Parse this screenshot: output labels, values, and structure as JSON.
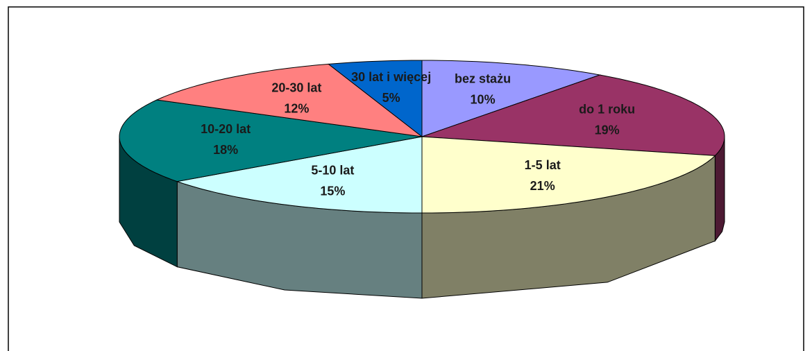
{
  "chart_data": {
    "type": "pie",
    "categories": [
      "bez stażu",
      "do 1 roku",
      "1-5 lat",
      "5-10 lat",
      "10-20 lat",
      "20-30 lat",
      "30 lat i więcej"
    ],
    "values": [
      10,
      19,
      21,
      15,
      18,
      12,
      5
    ],
    "value_labels": [
      "10%",
      "19%",
      "21%",
      "15%",
      "18%",
      "12%",
      "5%"
    ],
    "colors": [
      "#9999ff",
      "#993366",
      "#ffffcc",
      "#ccffff",
      "#008080",
      "#ff8080",
      "#0066cc"
    ]
  }
}
